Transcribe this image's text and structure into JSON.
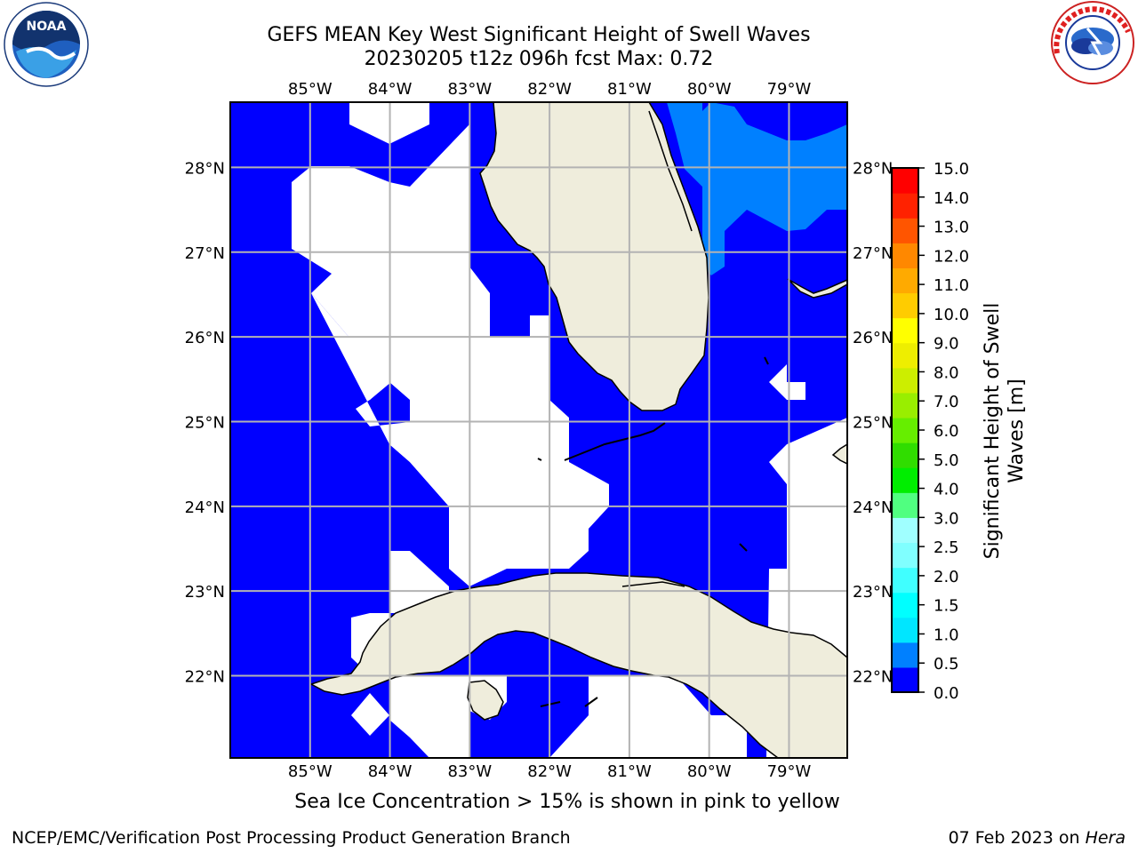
{
  "title": {
    "line1": "GEFS MEAN Key West Significant Height of Swell Waves",
    "line2": "20230205 t12z 096h fcst   Max: 0.72"
  },
  "logos": {
    "left": "noaa-logo",
    "right": "nws-logo",
    "right_text": "NATIONAL WEATHER SERVICE"
  },
  "map": {
    "lon_ticks": [
      "85°W",
      "84°W",
      "83°W",
      "82°W",
      "81°W",
      "80°W",
      "79°W"
    ],
    "lat_ticks": [
      "28°N",
      "27°N",
      "26°N",
      "25°N",
      "24°N",
      "23°N",
      "22°N"
    ],
    "lon_values": [
      -85,
      -84,
      -83,
      -82,
      -81,
      -80,
      -79
    ],
    "lat_values": [
      28,
      27,
      26,
      25,
      24,
      23,
      22
    ],
    "extent": {
      "lon_min": -86,
      "lon_max": -78.27,
      "lat_min": 21.03,
      "lat_max": 28.77
    },
    "colors": {
      "land": "#efeddc",
      "deep_blue": "#0000ff",
      "mid_blue": "#0080ff",
      "grid": "#b3b3b3"
    }
  },
  "colorbar": {
    "label": "Significant Height of Swell Waves [m]",
    "tick_labels": [
      "0.0",
      "0.5",
      "1.0",
      "1.5",
      "2.0",
      "2.5",
      "3.0",
      "4.0",
      "5.0",
      "6.0",
      "7.0",
      "8.0",
      "9.0",
      "10.0",
      "11.0",
      "12.0",
      "13.0",
      "14.0",
      "15.0"
    ],
    "colors": [
      "#0000ff",
      "#0080ff",
      "#00e6ff",
      "#00ffff",
      "#40ffff",
      "#80ffff",
      "#a0ffff",
      "#50ff80",
      "#00ee00",
      "#30dd00",
      "#66ee00",
      "#99ee00",
      "#ccee00",
      "#eeee00",
      "#ffff00",
      "#ffcc00",
      "#ffaa00",
      "#ff8800",
      "#ff5500",
      "#ff2200",
      "#ff0000"
    ]
  },
  "footnote": "Sea Ice Concentration > 15% is shown in pink to yellow",
  "footer": {
    "branch": "NCEP/EMC/Verification Post Processing Product Generation Branch",
    "date": "07 Feb 2023 on ",
    "machine": "Hera"
  }
}
